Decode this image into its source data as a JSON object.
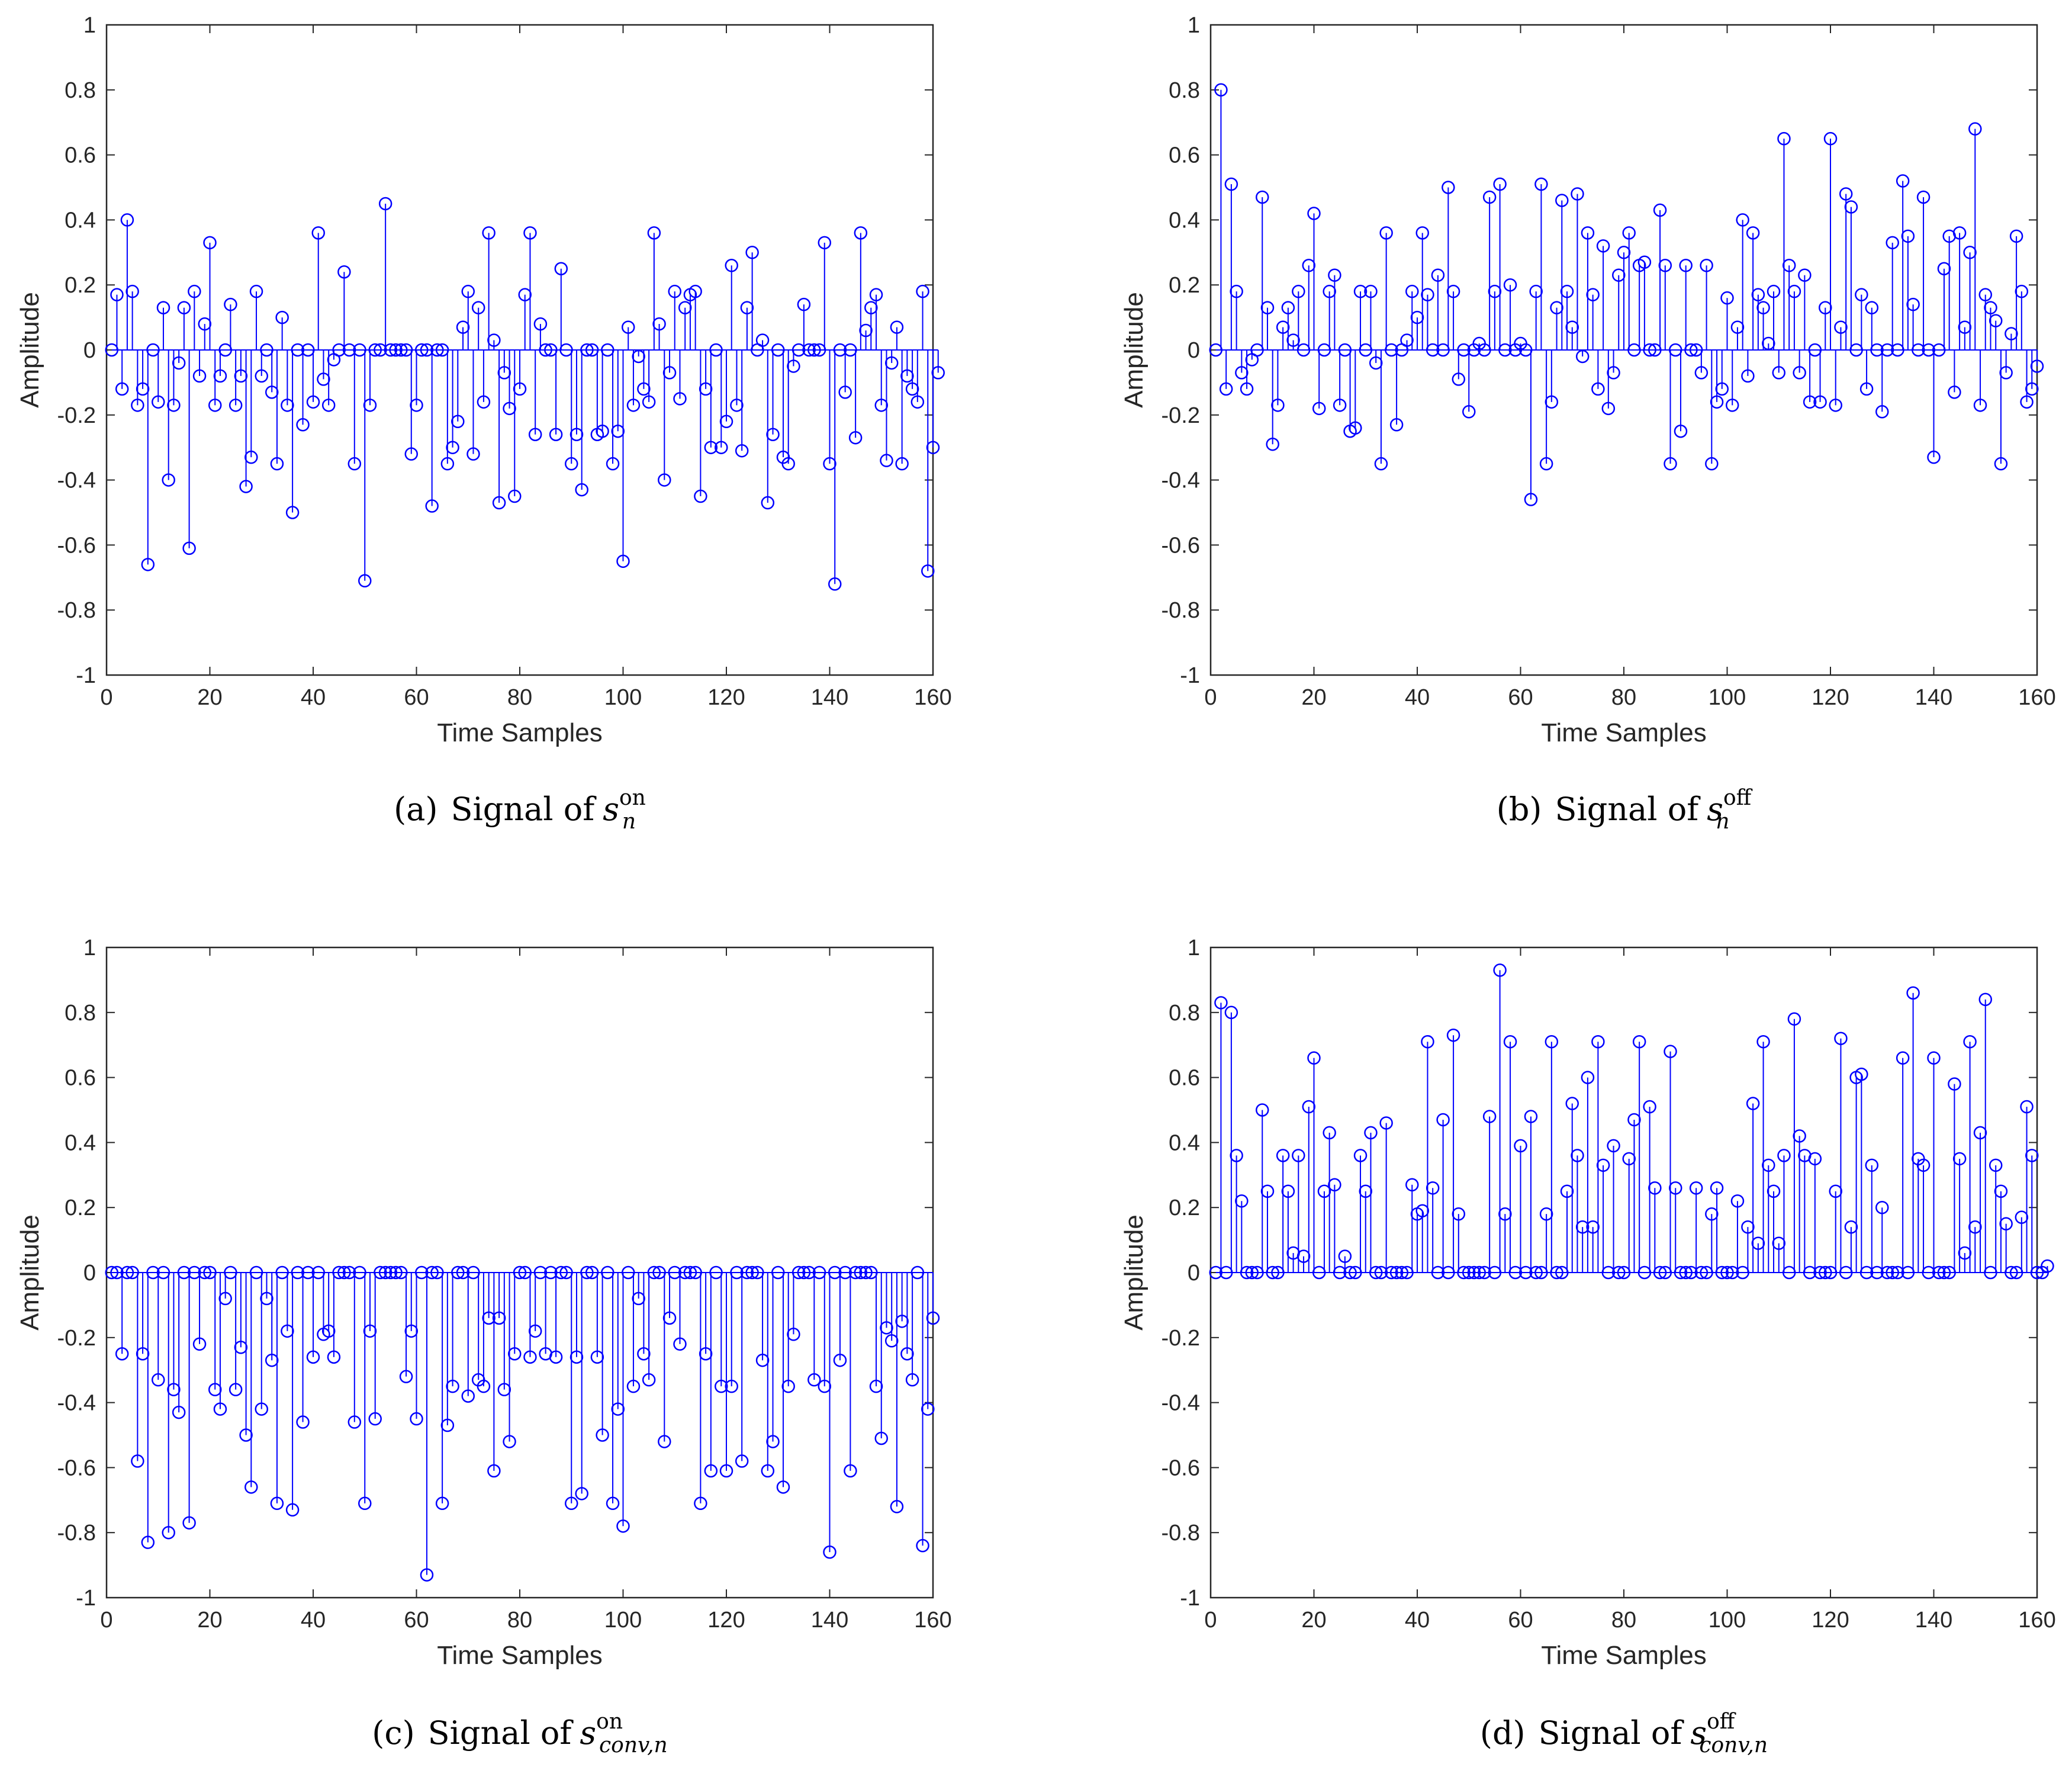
{
  "figure": {
    "colors": {
      "stem": "#0000ff",
      "axis": "#262626",
      "background": "#ffffff"
    },
    "marker_icon": "circle-outline-icon"
  },
  "chart_data": [
    {
      "id": "a",
      "type": "stem",
      "xlabel": "Time Samples",
      "ylabel": "Amplitude",
      "xlim": [
        0,
        160
      ],
      "ylim": [
        -1,
        1
      ],
      "xticks": [
        "0",
        "20",
        "40",
        "60",
        "80",
        "100",
        "120",
        "140",
        "160"
      ],
      "yticks": [
        "-1",
        "-0.8",
        "-0.6",
        "-0.4",
        "-0.2",
        "0",
        "0.2",
        "0.4",
        "0.6",
        "0.8",
        "1"
      ],
      "caption": {
        "label": "(a)",
        "text": "Signal of",
        "symbol": "s",
        "sub": "n",
        "sup": "on"
      },
      "series": [
        {
          "name": "s_n^on",
          "x_start": 1,
          "values": [
            0,
            0.17,
            -0.12,
            0.4,
            0.18,
            -0.17,
            -0.12,
            -0.66,
            0,
            -0.16,
            0.13,
            -0.4,
            -0.17,
            -0.04,
            0.13,
            -0.61,
            0.18,
            -0.08,
            0.08,
            0.33,
            -0.17,
            -0.08,
            0,
            0.14,
            -0.17,
            -0.08,
            -0.42,
            -0.33,
            0.18,
            -0.08,
            0,
            -0.13,
            -0.35,
            0.1,
            -0.17,
            -0.5,
            0,
            -0.23,
            0,
            -0.16,
            0.36,
            -0.09,
            -0.17,
            -0.03,
            0,
            0.24,
            0,
            -0.35,
            0,
            -0.71,
            -0.17,
            0,
            0,
            0.45,
            0,
            0,
            0,
            0,
            -0.32,
            -0.17,
            0,
            0,
            -0.48,
            0,
            0,
            -0.35,
            -0.3,
            -0.22,
            0.07,
            0.18,
            -0.32,
            0.13,
            -0.16,
            0.36,
            0.03,
            -0.47,
            -0.07,
            -0.18,
            -0.45,
            -0.12,
            0.17,
            0.36,
            -0.26,
            0.08,
            0,
            0,
            -0.26,
            0.25,
            0,
            -0.35,
            -0.26,
            -0.43,
            0,
            0,
            -0.26,
            -0.25,
            0,
            -0.35,
            -0.25,
            -0.65,
            0.07,
            -0.17,
            -0.02,
            -0.12,
            -0.16,
            0.36,
            0.08,
            -0.4,
            -0.07,
            0.18,
            -0.15,
            0.13,
            0.17,
            0.18,
            -0.45,
            -0.12,
            -0.3,
            0,
            -0.3,
            -0.22,
            0.26,
            -0.17,
            -0.31,
            0.13,
            0.3,
            0,
            0.03,
            -0.47,
            -0.26,
            0,
            -0.33,
            -0.35,
            -0.05,
            0,
            0.14,
            0,
            0,
            0,
            0.33,
            -0.35,
            -0.72,
            0,
            -0.13,
            0,
            -0.27,
            0.36,
            0.06,
            0.13,
            0.17,
            -0.17,
            -0.34,
            -0.04,
            0.07,
            -0.35,
            -0.08,
            -0.12,
            -0.16,
            0.18,
            -0.68,
            -0.3,
            -0.07
          ]
        }
      ]
    },
    {
      "id": "b",
      "type": "stem",
      "xlabel": "Time Samples",
      "ylabel": "Amplitude",
      "xlim": [
        0,
        160
      ],
      "ylim": [
        -1,
        1
      ],
      "xticks": [
        "0",
        "20",
        "40",
        "60",
        "80",
        "100",
        "120",
        "140",
        "160"
      ],
      "yticks": [
        "-1",
        "-0.8",
        "-0.6",
        "-0.4",
        "-0.2",
        "0",
        "0.2",
        "0.4",
        "0.6",
        "0.8",
        "1"
      ],
      "caption": {
        "label": "(b)",
        "text": "Signal of",
        "symbol": "s",
        "sub": "n",
        "sup": "off"
      },
      "series": [
        {
          "name": "s_n^off",
          "x_start": 1,
          "values": [
            0,
            0.8,
            -0.12,
            0.51,
            0.18,
            -0.07,
            -0.12,
            -0.03,
            0,
            0.47,
            0.13,
            -0.29,
            -0.17,
            0.07,
            0.13,
            0.03,
            0.18,
            0,
            0.26,
            0.42,
            -0.18,
            0,
            0.18,
            0.23,
            -0.17,
            0,
            -0.25,
            -0.24,
            0.18,
            0,
            0.18,
            -0.04,
            -0.35,
            0.36,
            0,
            -0.23,
            0,
            0.03,
            0.18,
            0.1,
            0.36,
            0.17,
            0,
            0.23,
            0,
            0.5,
            0.18,
            -0.09,
            0,
            -0.19,
            0,
            0.02,
            0,
            0.47,
            0.18,
            0.51,
            0,
            0.2,
            0,
            0.02,
            0,
            -0.46,
            0.18,
            0.51,
            -0.35,
            -0.16,
            0.13,
            0.46,
            0.18,
            0.07,
            0.48,
            -0.02,
            0.36,
            0.17,
            -0.12,
            0.32,
            -0.18,
            -0.07,
            0.23,
            0.3,
            0.36,
            0,
            0.26,
            0.27,
            0,
            0,
            0.43,
            0.26,
            -0.35,
            0,
            -0.25,
            0.26,
            0,
            0,
            -0.07,
            0.26,
            -0.35,
            -0.16,
            -0.12,
            0.16,
            -0.17,
            0.07,
            0.4,
            -0.08,
            0.36,
            0.17,
            0.13,
            0.02,
            0.18,
            -0.07,
            0.65,
            0.26,
            0.18,
            -0.07,
            0.23,
            -0.16,
            0,
            -0.16,
            0.13,
            0.65,
            -0.17,
            0.07,
            0.48,
            0.44,
            0,
            0.17,
            -0.12,
            0.13,
            0,
            -0.19,
            0,
            0.33,
            0,
            0.52,
            0.35,
            0.14,
            0,
            0.47,
            0,
            -0.33,
            0,
            0.25,
            0.35,
            -0.13,
            0.36,
            0.07,
            0.3,
            0.68,
            -0.17,
            0.17,
            0.13,
            0.09,
            -0.35,
            -0.07,
            0.05,
            0.35,
            0.18,
            -0.16,
            -0.12,
            -0.05
          ]
        }
      ]
    },
    {
      "id": "c",
      "type": "stem",
      "xlabel": "Time Samples",
      "ylabel": "Amplitude",
      "xlim": [
        0,
        160
      ],
      "ylim": [
        -1,
        1
      ],
      "xticks": [
        "0",
        "20",
        "40",
        "60",
        "80",
        "100",
        "120",
        "140",
        "160"
      ],
      "yticks": [
        "-1",
        "-0.8",
        "-0.6",
        "-0.4",
        "-0.2",
        "0",
        "0.2",
        "0.4",
        "0.6",
        "0.8",
        "1"
      ],
      "caption": {
        "label": "(c)",
        "text": "Signal of",
        "symbol": "s",
        "sub": "conv,n",
        "sup": "on"
      },
      "series": [
        {
          "name": "s_conv,n^on",
          "x_start": 1,
          "values": [
            0,
            0,
            -0.25,
            0,
            0,
            -0.58,
            -0.25,
            -0.83,
            0,
            -0.33,
            0,
            -0.8,
            -0.36,
            -0.43,
            0,
            -0.77,
            0,
            -0.22,
            0,
            0,
            -0.36,
            -0.42,
            -0.08,
            0,
            -0.36,
            -0.23,
            -0.5,
            -0.66,
            0,
            -0.42,
            -0.08,
            -0.27,
            -0.71,
            0,
            -0.18,
            -0.73,
            0,
            -0.46,
            0,
            -0.26,
            0,
            -0.19,
            -0.18,
            -0.26,
            0,
            0,
            0,
            -0.46,
            0,
            -0.71,
            -0.18,
            -0.45,
            0,
            0,
            0,
            0,
            0,
            -0.32,
            -0.18,
            -0.45,
            0,
            -0.93,
            0,
            0,
            -0.71,
            -0.47,
            -0.35,
            0,
            0,
            -0.38,
            0,
            -0.33,
            -0.35,
            -0.14,
            -0.61,
            -0.14,
            -0.36,
            -0.52,
            -0.25,
            0,
            0,
            -0.26,
            -0.18,
            0,
            -0.25,
            0,
            -0.26,
            0,
            0,
            -0.71,
            -0.26,
            -0.68,
            0,
            0,
            -0.26,
            -0.5,
            0,
            -0.71,
            -0.42,
            -0.78,
            0,
            -0.35,
            -0.08,
            -0.25,
            -0.33,
            0,
            0,
            -0.52,
            -0.14,
            0,
            -0.22,
            0,
            0,
            0,
            -0.71,
            -0.25,
            -0.61,
            0,
            -0.35,
            -0.61,
            -0.35,
            0,
            -0.58,
            0,
            0,
            0,
            -0.27,
            -0.61,
            -0.52,
            0,
            -0.66,
            -0.35,
            -0.19,
            0,
            0,
            0,
            -0.33,
            0,
            -0.35,
            -0.86,
            0,
            -0.27,
            0,
            -0.61,
            0,
            0,
            0,
            0,
            -0.35,
            -0.51,
            -0.17,
            -0.21,
            -0.72,
            -0.15,
            -0.25,
            -0.33,
            0,
            -0.84,
            -0.42,
            -0.14
          ]
        }
      ]
    },
    {
      "id": "d",
      "type": "stem",
      "xlabel": "Time Samples",
      "ylabel": "Amplitude",
      "xlim": [
        0,
        160
      ],
      "ylim": [
        -1,
        1
      ],
      "xticks": [
        "0",
        "20",
        "40",
        "60",
        "80",
        "100",
        "120",
        "140",
        "160"
      ],
      "yticks": [
        "-1",
        "-0.8",
        "-0.6",
        "-0.4",
        "-0.2",
        "0",
        "0.2",
        "0.4",
        "0.6",
        "0.8",
        "1"
      ],
      "caption": {
        "label": "(d)",
        "text": "Signal of",
        "symbol": "s",
        "sub": "conv,n",
        "sup": "off"
      },
      "series": [
        {
          "name": "s_conv,n^off",
          "x_start": 1,
          "values": [
            0,
            0.83,
            0,
            0.8,
            0.36,
            0.22,
            0,
            0,
            0,
            0.5,
            0.25,
            0,
            0,
            0.36,
            0.25,
            0.06,
            0.36,
            0.05,
            0.51,
            0.66,
            0,
            0.25,
            0.43,
            0.27,
            0,
            0.05,
            0,
            0,
            0.36,
            0.25,
            0.43,
            0,
            0,
            0.46,
            0,
            0,
            0,
            0,
            0.27,
            0.18,
            0.19,
            0.71,
            0.26,
            0,
            0.47,
            0,
            0.73,
            0.18,
            0,
            0,
            0,
            0,
            0,
            0.48,
            0,
            0.93,
            0.18,
            0.71,
            0,
            0.39,
            0,
            0.48,
            0,
            0,
            0.18,
            0.71,
            0,
            0,
            0.25,
            0.52,
            0.36,
            0.14,
            0.6,
            0.14,
            0.71,
            0.33,
            0,
            0.39,
            0,
            0,
            0.35,
            0.47,
            0.71,
            0,
            0.51,
            0.26,
            0,
            0,
            0.68,
            0.26,
            0,
            0,
            0,
            0.26,
            0,
            0,
            0.18,
            0.26,
            0,
            0,
            0,
            0.22,
            0,
            0.14,
            0.52,
            0.09,
            0.71,
            0.33,
            0.25,
            0.09,
            0.36,
            0,
            0.78,
            0.42,
            0.36,
            0,
            0.35,
            0,
            0,
            0,
            0.25,
            0.72,
            0,
            0.14,
            0.6,
            0.61,
            0,
            0.33,
            0,
            0.2,
            0,
            0,
            0,
            0.66,
            0,
            0.86,
            0.35,
            0.33,
            0,
            0.66,
            0,
            0,
            0,
            0.58,
            0.35,
            0.06,
            0.71,
            0.14,
            0.43,
            0.84,
            0,
            0.33,
            0.25,
            0.15,
            0,
            0,
            0.17,
            0.51,
            0.36,
            0,
            0,
            0.02
          ]
        }
      ]
    }
  ]
}
